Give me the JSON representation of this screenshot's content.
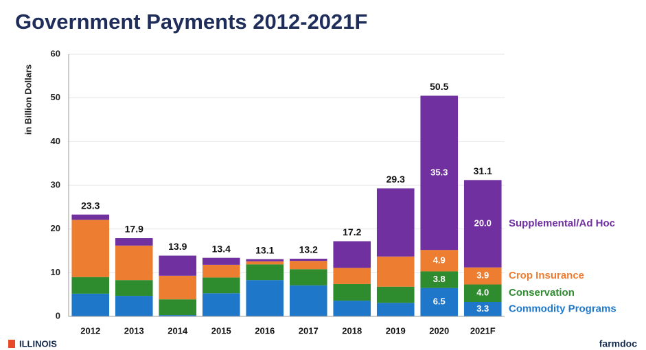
{
  "chart_data": {
    "type": "stacked_bar",
    "title": "Government Payments 2012-2021F",
    "ylabel": "in Billion Dollars",
    "categories": [
      "2012",
      "2013",
      "2014",
      "2015",
      "2016",
      "2017",
      "2018",
      "2019",
      "2020",
      "2021F"
    ],
    "series": [
      {
        "name": "Commodity Programs",
        "color": "#1f77c9",
        "values": [
          5.2,
          4.7,
          0.3,
          5.3,
          8.3,
          7.1,
          3.6,
          3.1,
          6.5,
          3.3
        ],
        "value_labels": [
          null,
          null,
          null,
          null,
          null,
          null,
          null,
          null,
          "6.5",
          "3.3"
        ]
      },
      {
        "name": "Conservation",
        "color": "#2e8b2e",
        "values": [
          3.8,
          3.6,
          3.6,
          3.6,
          3.6,
          3.7,
          3.8,
          3.7,
          3.8,
          4.0
        ],
        "value_labels": [
          null,
          null,
          null,
          null,
          null,
          null,
          null,
          null,
          "3.8",
          "4.0"
        ]
      },
      {
        "name": "Crop Insurance",
        "color": "#ed7d31",
        "values": [
          13.1,
          7.9,
          5.4,
          2.9,
          0.7,
          1.9,
          3.7,
          6.9,
          4.9,
          3.9
        ],
        "value_labels": [
          null,
          null,
          null,
          null,
          null,
          null,
          null,
          null,
          "4.9",
          "3.9"
        ]
      },
      {
        "name": "Supplemental/Ad Hoc",
        "color": "#7030a0",
        "values": [
          1.2,
          1.7,
          4.6,
          1.6,
          0.5,
          0.5,
          6.1,
          15.6,
          35.3,
          20.0
        ],
        "value_labels": [
          null,
          null,
          null,
          null,
          null,
          null,
          null,
          null,
          "35.3",
          "20.0"
        ]
      }
    ],
    "totals": [
      23.3,
      17.9,
      13.9,
      13.4,
      13.1,
      13.2,
      17.2,
      29.3,
      50.5,
      31.1
    ],
    "ylim": [
      0,
      60
    ],
    "yticks": [
      0,
      10,
      20,
      30,
      40,
      50,
      60
    ],
    "grid": true,
    "footer_left": "ILLINOIS",
    "footer_right": "farmdoc"
  }
}
